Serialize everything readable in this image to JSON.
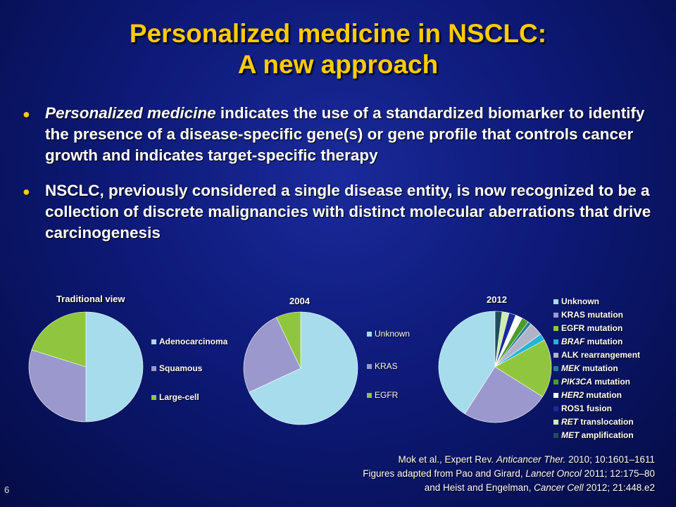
{
  "slide": {
    "title_line1": "Personalized medicine in NSCLC:",
    "title_line2": "A new approach",
    "bullet1": {
      "italic": "Personalized medicine",
      "rest": " indicates the use of a standardized biomarker to identify the presence of a disease-specific gene(s) or gene profile that controls cancer growth and indicates target-specific therapy"
    },
    "bullet2": "NSCLC, previously considered a single disease entity, is now recognized to be a collection of discrete malignancies with distinct molecular aberrations that drive carcinogenesis",
    "page_number": "6"
  },
  "references": {
    "line1_pre": "Mok et al., Expert Rev. ",
    "line1_italic": "Anticancer Ther.",
    "line1_post": " 2010; 10:1601–1611",
    "line2_pre": "Figures adapted from Pao and Girard, ",
    "line2_italic": "Lancet Oncol",
    "line2_post": " 2011; 12:175–80",
    "line3_pre": "and Heist and Engelman, ",
    "line3_italic": "Cancer Cell",
    "line3_post": " 2012; 21:448.e2"
  },
  "chart_data": [
    {
      "type": "pie",
      "title": "Traditional view",
      "series": [
        {
          "name": "Adenocarcinoma",
          "value": 50,
          "color": "#a6dcec"
        },
        {
          "name": "Squamous",
          "value": 30,
          "color": "#9a98cc"
        },
        {
          "name": "Large-cell",
          "value": 20,
          "color": "#8fc63e"
        }
      ],
      "legend_placement": "right"
    },
    {
      "type": "pie",
      "title": "2004",
      "series": [
        {
          "name": "Unknown",
          "value": 68,
          "color": "#a6dcec"
        },
        {
          "name": "KRAS",
          "value": 25,
          "color": "#9a98cc"
        },
        {
          "name": "EGFR",
          "value": 7,
          "color": "#8fc63e"
        }
      ],
      "legend_placement": "right"
    },
    {
      "type": "pie",
      "title": "2012",
      "series": [
        {
          "name": "Unknown",
          "value": 41,
          "color": "#a6dcec"
        },
        {
          "name": "KRAS mutation",
          "value": 25,
          "color": "#9a98cc"
        },
        {
          "name": "EGFR mutation",
          "value": 17,
          "color": "#8fc63e"
        },
        {
          "name": "BRAF mutation",
          "value": 2,
          "color": "#23b5d8"
        },
        {
          "name": "ALK rearrangement",
          "value": 4,
          "color": "#b3b3c8"
        },
        {
          "name": "MEK mutation",
          "value": 1,
          "color": "#1f7f96"
        },
        {
          "name": "PIK3CA mutation",
          "value": 2,
          "color": "#4e9a2a"
        },
        {
          "name": "HER2 mutation",
          "value": 2,
          "color": "#ffffff"
        },
        {
          "name": "ROS1 fusion",
          "value": 2,
          "color": "#1a2a9a"
        },
        {
          "name": "RET translocation",
          "value": 2,
          "color": "#d0ecb0"
        },
        {
          "name": "MET amplification",
          "value": 2,
          "color": "#1e4e5a"
        }
      ],
      "legend_placement": "right"
    }
  ]
}
